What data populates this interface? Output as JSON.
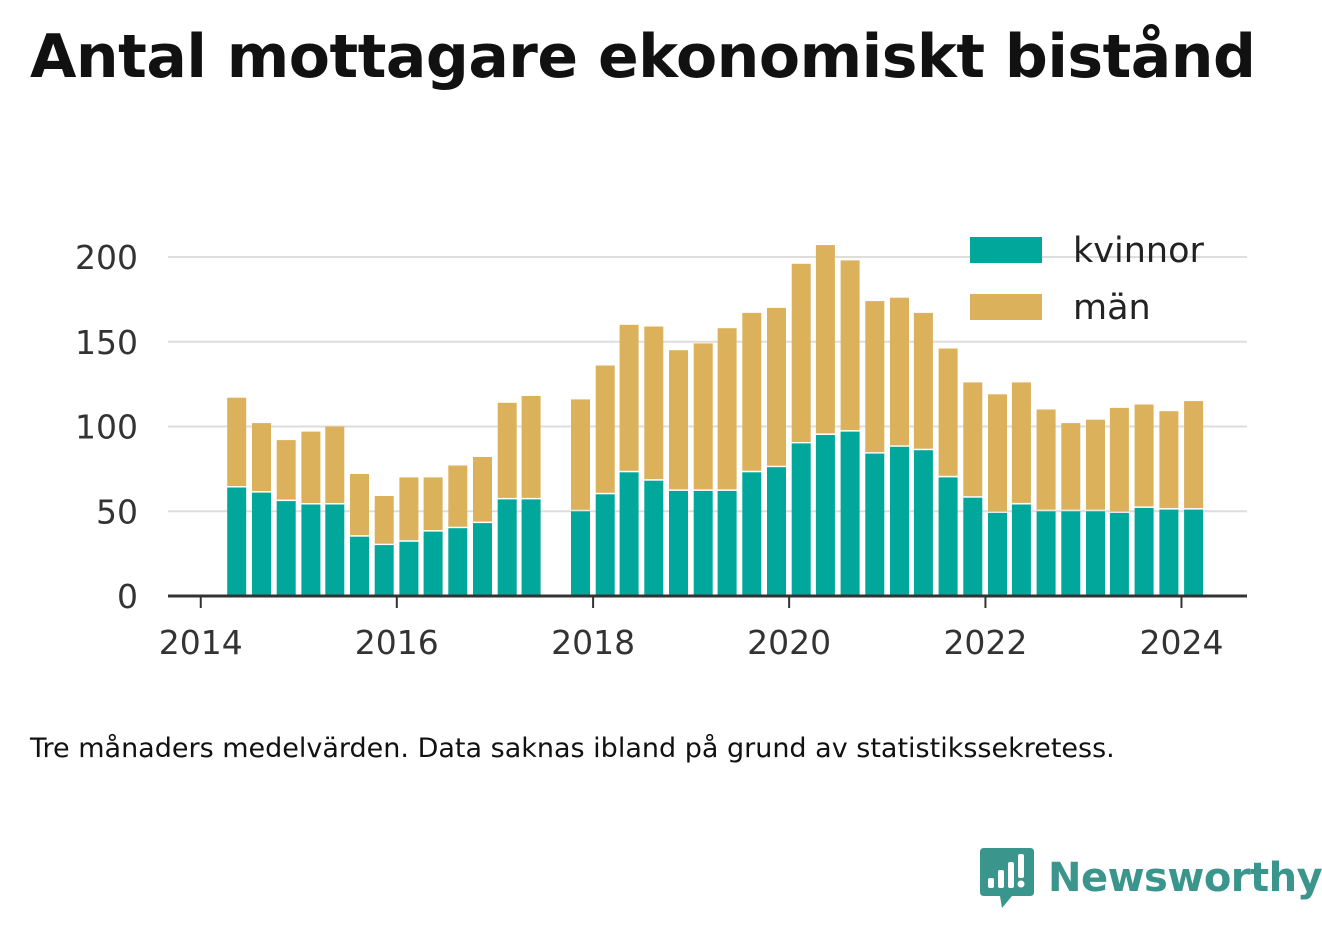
{
  "title": "Antal mottagare ekonomiskt bistånd",
  "footnote": "Tre månaders medelvärden. Data saknas ibland på grund av statistikssekretess.",
  "brand": {
    "name": "Newsworthy",
    "icon": "bar-chart-speech-bubble-icon"
  },
  "colors": {
    "kvinnor": "#00a79a",
    "man": "#dcb15c",
    "grid": "#dddddd",
    "axis": "#333333",
    "brand": "#3a958c"
  },
  "chart_data": {
    "type": "bar",
    "stacked": true,
    "x_axis": {
      "type": "date",
      "ticks": [
        "2014",
        "2016",
        "2018",
        "2020",
        "2022",
        "2024"
      ],
      "range": [
        "2013-09-01",
        "2024-09-01"
      ]
    },
    "y_axis": {
      "ticks": [
        "0",
        "50",
        "100",
        "150",
        "200"
      ],
      "range": [
        0,
        200
      ]
    },
    "grid": true,
    "legend": {
      "position": "top-right",
      "entries": [
        "kvinnor",
        "män"
      ]
    },
    "x": [
      "2014-05",
      "2014-08",
      "2014-11",
      "2015-02",
      "2015-05",
      "2015-08",
      "2015-11",
      "2016-02",
      "2016-05",
      "2016-08",
      "2016-11",
      "2017-02",
      "2017-05",
      "2017-11",
      "2018-02",
      "2018-05",
      "2018-08",
      "2018-11",
      "2019-02",
      "2019-05",
      "2019-08",
      "2019-11",
      "2020-02",
      "2020-05",
      "2020-08",
      "2020-11",
      "2021-02",
      "2021-05",
      "2021-08",
      "2021-11",
      "2022-02",
      "2022-05",
      "2022-08",
      "2022-11",
      "2023-02",
      "2023-05",
      "2023-08",
      "2023-11",
      "2024-02"
    ],
    "series": [
      {
        "name": "kvinnor",
        "values": [
          64,
          61,
          56,
          54,
          54,
          35,
          30,
          32,
          38,
          40,
          43,
          57,
          57,
          50,
          60,
          73,
          68,
          62,
          62,
          62,
          73,
          76,
          90,
          95,
          97,
          84,
          88,
          86,
          70,
          58,
          49,
          54,
          50,
          50,
          50,
          49,
          52,
          51,
          51
        ]
      },
      {
        "name": "män",
        "values": [
          53,
          41,
          36,
          43,
          46,
          37,
          29,
          38,
          32,
          37,
          39,
          57,
          61,
          66,
          76,
          87,
          91,
          83,
          87,
          96,
          94,
          94,
          106,
          112,
          101,
          90,
          88,
          81,
          76,
          68,
          70,
          72,
          60,
          52,
          54,
          62,
          61,
          58,
          64
        ]
      }
    ]
  }
}
